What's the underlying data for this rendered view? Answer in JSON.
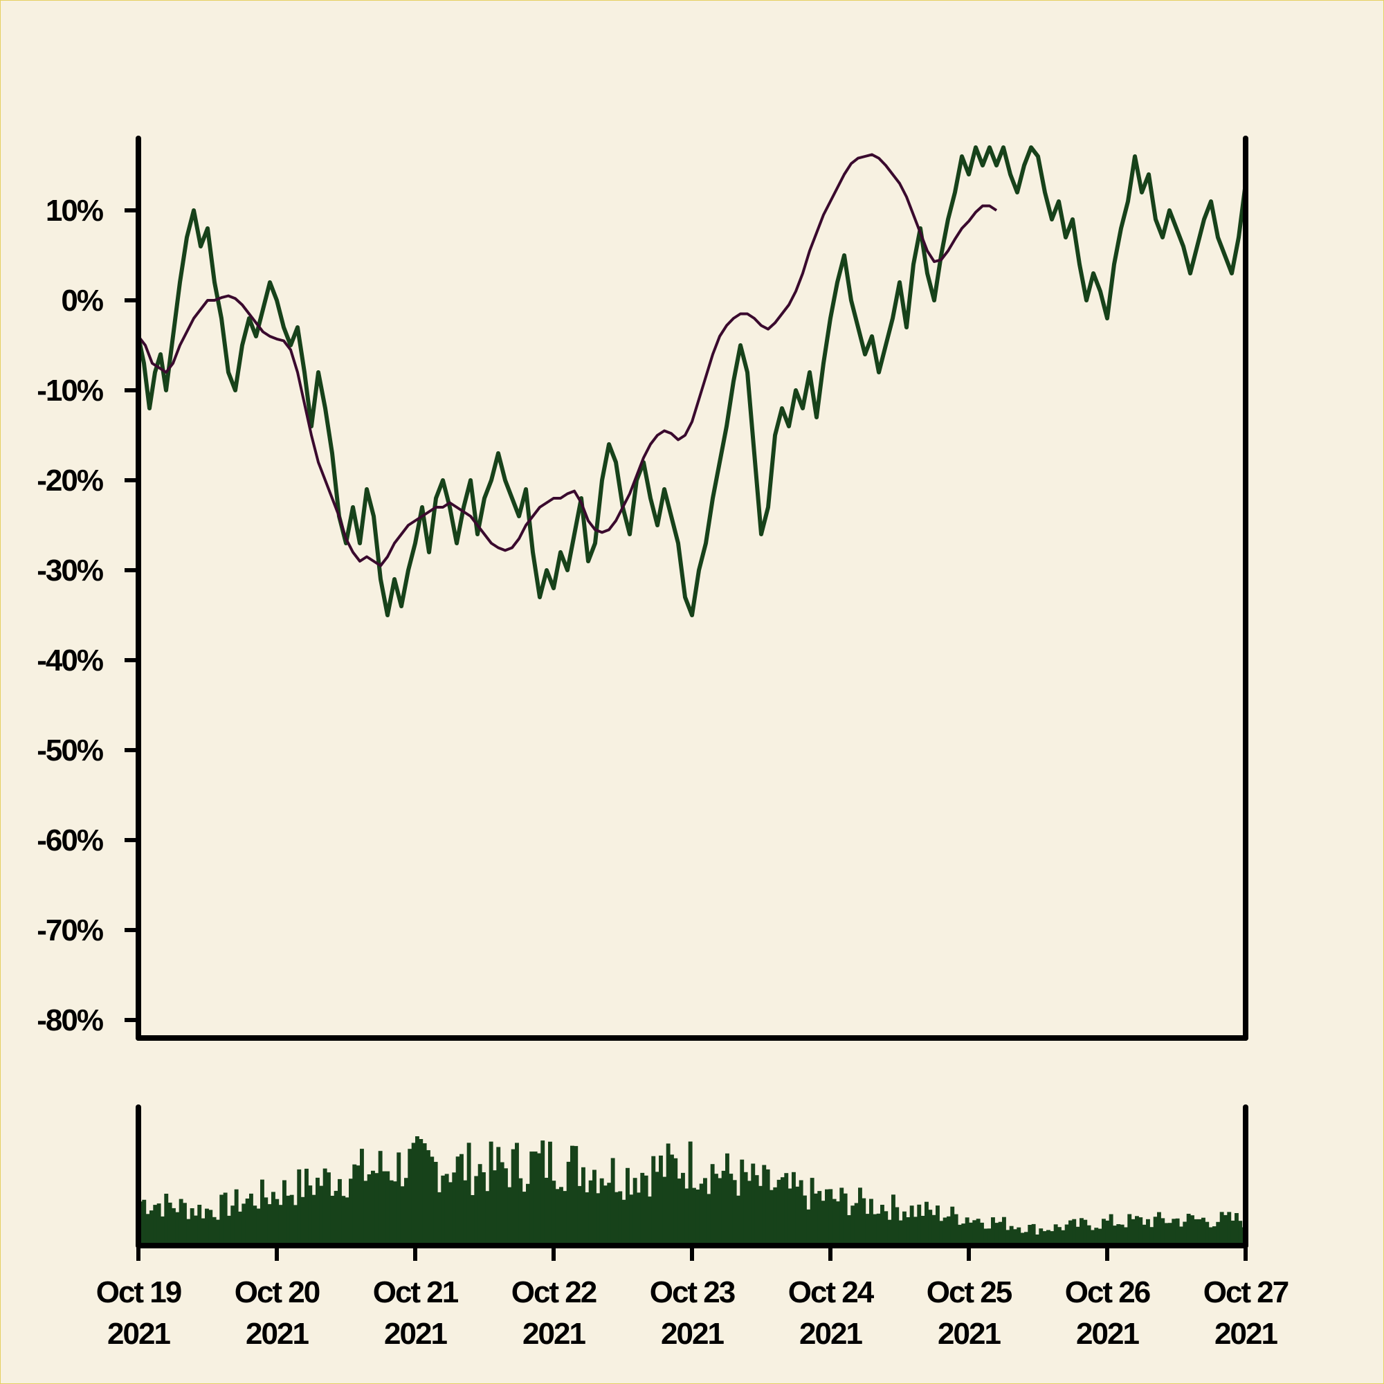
{
  "chart_data": {
    "type": "line",
    "y_axis": {
      "ticks": [
        10,
        0,
        -10,
        -20,
        -30,
        -40,
        -50,
        -60,
        -70,
        -80
      ],
      "tick_labels": [
        "10%",
        "0%",
        "-10%",
        "-20%",
        "-30%",
        "-40%",
        "-50%",
        "-60%",
        "-70%",
        "-80%"
      ],
      "range": [
        -82,
        18
      ],
      "unit": "%"
    },
    "x_axis": {
      "range_days": [
        0,
        8
      ],
      "ticks": [
        {
          "day": 0,
          "line1": "Oct 19",
          "line2": "2021"
        },
        {
          "day": 1,
          "line1": "Oct 20",
          "line2": "2021"
        },
        {
          "day": 2,
          "line1": "Oct 21",
          "line2": "2021"
        },
        {
          "day": 3,
          "line1": "Oct 22",
          "line2": "2021"
        },
        {
          "day": 4,
          "line1": "Oct 23",
          "line2": "2021"
        },
        {
          "day": 5,
          "line1": "Oct 24",
          "line2": "2021"
        },
        {
          "day": 6,
          "line1": "Oct 25",
          "line2": "2021"
        },
        {
          "day": 7,
          "line1": "Oct 26",
          "line2": "2021"
        },
        {
          "day": 8,
          "line1": "Oct 27",
          "line2": "2021"
        }
      ]
    },
    "series": [
      {
        "role": "price",
        "color": "#17421a",
        "points": [
          [
            0.0,
            -4
          ],
          [
            0.04,
            -7
          ],
          [
            0.08,
            -12
          ],
          [
            0.12,
            -8
          ],
          [
            0.16,
            -6
          ],
          [
            0.2,
            -10
          ],
          [
            0.25,
            -4
          ],
          [
            0.3,
            2
          ],
          [
            0.35,
            7
          ],
          [
            0.4,
            10
          ],
          [
            0.45,
            6
          ],
          [
            0.5,
            8
          ],
          [
            0.55,
            2
          ],
          [
            0.6,
            -2
          ],
          [
            0.65,
            -8
          ],
          [
            0.7,
            -10
          ],
          [
            0.75,
            -5
          ],
          [
            0.8,
            -2
          ],
          [
            0.85,
            -4
          ],
          [
            0.9,
            -1
          ],
          [
            0.95,
            2
          ],
          [
            1.0,
            0
          ],
          [
            1.05,
            -3
          ],
          [
            1.1,
            -5
          ],
          [
            1.15,
            -3
          ],
          [
            1.2,
            -8
          ],
          [
            1.25,
            -14
          ],
          [
            1.3,
            -8
          ],
          [
            1.35,
            -12
          ],
          [
            1.4,
            -17
          ],
          [
            1.45,
            -24
          ],
          [
            1.5,
            -27
          ],
          [
            1.55,
            -23
          ],
          [
            1.6,
            -27
          ],
          [
            1.65,
            -21
          ],
          [
            1.7,
            -24
          ],
          [
            1.75,
            -31
          ],
          [
            1.8,
            -35
          ],
          [
            1.85,
            -31
          ],
          [
            1.9,
            -34
          ],
          [
            1.95,
            -30
          ],
          [
            2.0,
            -27
          ],
          [
            2.05,
            -23
          ],
          [
            2.1,
            -28
          ],
          [
            2.15,
            -22
          ],
          [
            2.2,
            -20
          ],
          [
            2.25,
            -23
          ],
          [
            2.3,
            -27
          ],
          [
            2.35,
            -23
          ],
          [
            2.4,
            -20
          ],
          [
            2.45,
            -26
          ],
          [
            2.5,
            -22
          ],
          [
            2.55,
            -20
          ],
          [
            2.6,
            -17
          ],
          [
            2.65,
            -20
          ],
          [
            2.7,
            -22
          ],
          [
            2.75,
            -24
          ],
          [
            2.8,
            -21
          ],
          [
            2.85,
            -28
          ],
          [
            2.9,
            -33
          ],
          [
            2.95,
            -30
          ],
          [
            3.0,
            -32
          ],
          [
            3.05,
            -28
          ],
          [
            3.1,
            -30
          ],
          [
            3.15,
            -26
          ],
          [
            3.2,
            -22
          ],
          [
            3.25,
            -29
          ],
          [
            3.3,
            -27
          ],
          [
            3.35,
            -20
          ],
          [
            3.4,
            -16
          ],
          [
            3.45,
            -18
          ],
          [
            3.5,
            -23
          ],
          [
            3.55,
            -26
          ],
          [
            3.6,
            -20
          ],
          [
            3.65,
            -18
          ],
          [
            3.7,
            -22
          ],
          [
            3.75,
            -25
          ],
          [
            3.8,
            -21
          ],
          [
            3.85,
            -24
          ],
          [
            3.9,
            -27
          ],
          [
            3.95,
            -33
          ],
          [
            4.0,
            -35
          ],
          [
            4.05,
            -30
          ],
          [
            4.1,
            -27
          ],
          [
            4.15,
            -22
          ],
          [
            4.2,
            -18
          ],
          [
            4.25,
            -14
          ],
          [
            4.3,
            -9
          ],
          [
            4.35,
            -5
          ],
          [
            4.4,
            -8
          ],
          [
            4.45,
            -17
          ],
          [
            4.5,
            -26
          ],
          [
            4.55,
            -23
          ],
          [
            4.6,
            -15
          ],
          [
            4.65,
            -12
          ],
          [
            4.7,
            -14
          ],
          [
            4.75,
            -10
          ],
          [
            4.8,
            -12
          ],
          [
            4.85,
            -8
          ],
          [
            4.9,
            -13
          ],
          [
            4.95,
            -7
          ],
          [
            5.0,
            -2
          ],
          [
            5.05,
            2
          ],
          [
            5.1,
            5
          ],
          [
            5.15,
            0
          ],
          [
            5.2,
            -3
          ],
          [
            5.25,
            -6
          ],
          [
            5.3,
            -4
          ],
          [
            5.35,
            -8
          ],
          [
            5.4,
            -5
          ],
          [
            5.45,
            -2
          ],
          [
            5.5,
            2
          ],
          [
            5.55,
            -3
          ],
          [
            5.6,
            4
          ],
          [
            5.65,
            8
          ],
          [
            5.7,
            3
          ],
          [
            5.75,
            0
          ],
          [
            5.8,
            5
          ],
          [
            5.85,
            9
          ],
          [
            5.9,
            12
          ],
          [
            5.95,
            16
          ],
          [
            6.0,
            14
          ],
          [
            6.05,
            17
          ],
          [
            6.1,
            15
          ],
          [
            6.15,
            17
          ],
          [
            6.2,
            15
          ],
          [
            6.25,
            17
          ],
          [
            6.3,
            14
          ],
          [
            6.35,
            12
          ],
          [
            6.4,
            15
          ],
          [
            6.45,
            17
          ],
          [
            6.5,
            16
          ],
          [
            6.55,
            12
          ],
          [
            6.6,
            9
          ],
          [
            6.65,
            11
          ],
          [
            6.7,
            7
          ],
          [
            6.75,
            9
          ],
          [
            6.8,
            4
          ],
          [
            6.85,
            0
          ],
          [
            6.9,
            3
          ],
          [
            6.95,
            1
          ],
          [
            7.0,
            -2
          ],
          [
            7.05,
            4
          ],
          [
            7.1,
            8
          ],
          [
            7.15,
            11
          ],
          [
            7.2,
            16
          ],
          [
            7.25,
            12
          ],
          [
            7.3,
            14
          ],
          [
            7.35,
            9
          ],
          [
            7.4,
            7
          ],
          [
            7.45,
            10
          ],
          [
            7.5,
            8
          ],
          [
            7.55,
            6
          ],
          [
            7.6,
            3
          ],
          [
            7.65,
            6
          ],
          [
            7.7,
            9
          ],
          [
            7.75,
            11
          ],
          [
            7.8,
            7
          ],
          [
            7.85,
            5
          ],
          [
            7.9,
            3
          ],
          [
            7.95,
            7
          ],
          [
            8.0,
            13
          ]
        ]
      },
      {
        "role": "moving-average",
        "color": "#3a0a2e",
        "points": [
          [
            0.0,
            -4
          ],
          [
            0.05,
            -5
          ],
          [
            0.1,
            -7
          ],
          [
            0.15,
            -7.5
          ],
          [
            0.2,
            -8
          ],
          [
            0.25,
            -7
          ],
          [
            0.3,
            -5
          ],
          [
            0.35,
            -3.5
          ],
          [
            0.4,
            -2
          ],
          [
            0.45,
            -1
          ],
          [
            0.5,
            0
          ],
          [
            0.55,
            0
          ],
          [
            0.6,
            0.3
          ],
          [
            0.65,
            0.5
          ],
          [
            0.7,
            0.2
          ],
          [
            0.75,
            -0.5
          ],
          [
            0.8,
            -1.5
          ],
          [
            0.85,
            -2.5
          ],
          [
            0.9,
            -3.5
          ],
          [
            0.95,
            -4
          ],
          [
            1.0,
            -4.3
          ],
          [
            1.05,
            -4.5
          ],
          [
            1.1,
            -5.5
          ],
          [
            1.15,
            -8
          ],
          [
            1.2,
            -11.5
          ],
          [
            1.25,
            -15
          ],
          [
            1.3,
            -18
          ],
          [
            1.35,
            -20
          ],
          [
            1.4,
            -22
          ],
          [
            1.45,
            -24
          ],
          [
            1.5,
            -26.5
          ],
          [
            1.55,
            -28
          ],
          [
            1.6,
            -29
          ],
          [
            1.65,
            -28.5
          ],
          [
            1.7,
            -29
          ],
          [
            1.75,
            -29.5
          ],
          [
            1.8,
            -28.5
          ],
          [
            1.85,
            -27
          ],
          [
            1.9,
            -26
          ],
          [
            1.95,
            -25
          ],
          [
            2.0,
            -24.5
          ],
          [
            2.05,
            -24
          ],
          [
            2.1,
            -23.5
          ],
          [
            2.15,
            -23
          ],
          [
            2.2,
            -23
          ],
          [
            2.25,
            -22.5
          ],
          [
            2.3,
            -23
          ],
          [
            2.35,
            -23.5
          ],
          [
            2.4,
            -24
          ],
          [
            2.45,
            -25
          ],
          [
            2.5,
            -26
          ],
          [
            2.55,
            -27
          ],
          [
            2.6,
            -27.5
          ],
          [
            2.65,
            -27.8
          ],
          [
            2.7,
            -27.5
          ],
          [
            2.75,
            -26.5
          ],
          [
            2.8,
            -25
          ],
          [
            2.85,
            -24
          ],
          [
            2.9,
            -23
          ],
          [
            2.95,
            -22.5
          ],
          [
            3.0,
            -22
          ],
          [
            3.05,
            -22
          ],
          [
            3.1,
            -21.5
          ],
          [
            3.15,
            -21.2
          ],
          [
            3.2,
            -22.5
          ],
          [
            3.25,
            -24.5
          ],
          [
            3.3,
            -25.5
          ],
          [
            3.35,
            -25.8
          ],
          [
            3.4,
            -25.5
          ],
          [
            3.45,
            -24.5
          ],
          [
            3.5,
            -23
          ],
          [
            3.55,
            -21.5
          ],
          [
            3.6,
            -19.5
          ],
          [
            3.65,
            -17.5
          ],
          [
            3.7,
            -16
          ],
          [
            3.75,
            -15
          ],
          [
            3.8,
            -14.5
          ],
          [
            3.85,
            -14.8
          ],
          [
            3.9,
            -15.5
          ],
          [
            3.95,
            -15
          ],
          [
            4.0,
            -13.5
          ],
          [
            4.05,
            -11
          ],
          [
            4.1,
            -8.5
          ],
          [
            4.15,
            -6
          ],
          [
            4.2,
            -4
          ],
          [
            4.25,
            -2.8
          ],
          [
            4.3,
            -2
          ],
          [
            4.35,
            -1.5
          ],
          [
            4.4,
            -1.5
          ],
          [
            4.45,
            -2
          ],
          [
            4.5,
            -2.8
          ],
          [
            4.55,
            -3.2
          ],
          [
            4.6,
            -2.5
          ],
          [
            4.65,
            -1.5
          ],
          [
            4.7,
            -0.5
          ],
          [
            4.75,
            1
          ],
          [
            4.8,
            3
          ],
          [
            4.85,
            5.5
          ],
          [
            4.9,
            7.5
          ],
          [
            4.95,
            9.5
          ],
          [
            5.0,
            11
          ],
          [
            5.05,
            12.5
          ],
          [
            5.1,
            14
          ],
          [
            5.15,
            15.2
          ],
          [
            5.2,
            15.8
          ],
          [
            5.25,
            16
          ],
          [
            5.3,
            16.2
          ],
          [
            5.35,
            15.8
          ],
          [
            5.4,
            15
          ],
          [
            5.45,
            14
          ],
          [
            5.5,
            13
          ],
          [
            5.55,
            11.5
          ],
          [
            5.6,
            9.5
          ],
          [
            5.65,
            7.5
          ],
          [
            5.7,
            5.5
          ],
          [
            5.75,
            4.3
          ],
          [
            5.8,
            4.5
          ],
          [
            5.85,
            5.5
          ],
          [
            5.9,
            6.8
          ],
          [
            5.95,
            8
          ],
          [
            6.0,
            8.8
          ],
          [
            6.05,
            9.8
          ],
          [
            6.1,
            10.5
          ],
          [
            6.15,
            10.5
          ],
          [
            6.2,
            10
          ]
        ]
      }
    ],
    "volume": {
      "color": "#17421a",
      "envelope": [
        [
          0.0,
          38
        ],
        [
          0.5,
          30
        ],
        [
          1.0,
          45
        ],
        [
          1.5,
          60
        ],
        [
          2.0,
          70
        ],
        [
          2.5,
          65
        ],
        [
          3.0,
          72
        ],
        [
          3.5,
          60
        ],
        [
          4.0,
          70
        ],
        [
          4.5,
          52
        ],
        [
          5.0,
          40
        ],
        [
          5.5,
          32
        ],
        [
          6.0,
          24
        ],
        [
          6.5,
          14
        ],
        [
          7.0,
          20
        ],
        [
          7.5,
          22
        ],
        [
          8.0,
          22
        ]
      ],
      "max": 100
    }
  }
}
